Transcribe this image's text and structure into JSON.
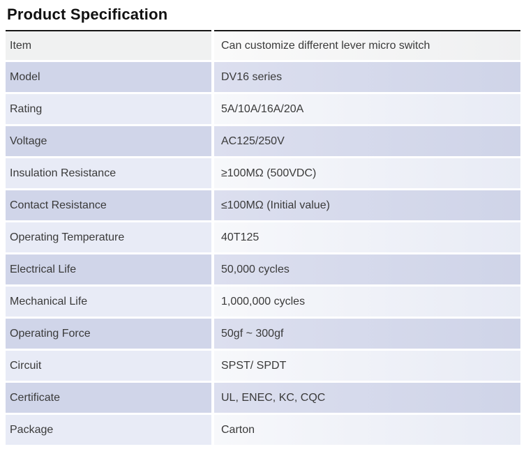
{
  "page": {
    "title": "Product Specification"
  },
  "colors": {
    "row_first_bg": "#f0f1f1",
    "row_dark_bg": "#d0d5e9",
    "row_light_bg": "#e8ebf6",
    "table_top_rule": "#161616",
    "text": "#3a3a3a"
  },
  "table": {
    "rows": [
      {
        "label": "Item",
        "value": "Can customize different lever micro switch"
      },
      {
        "label": "Model",
        "value": "DV16 series"
      },
      {
        "label": "Rating",
        "value": "5A/10A/16A/20A"
      },
      {
        "label": "Voltage",
        "value": "AC125/250V"
      },
      {
        "label": "Insulation Resistance",
        "value": "≥100MΩ (500VDC)"
      },
      {
        "label": "Contact Resistance",
        "value": "≤100MΩ (Initial value)"
      },
      {
        "label": "Operating Temperature",
        "value": "40T125"
      },
      {
        "label": "Electrical Life",
        "value": "50,000 cycles"
      },
      {
        "label": "Mechanical Life",
        "value": "1,000,000 cycles"
      },
      {
        "label": "Operating Force",
        "value": "50gf ~ 300gf"
      },
      {
        "label": "Circuit",
        "value": "SPST/ SPDT"
      },
      {
        "label": "Certificate",
        "value": "UL, ENEC, KC, CQC"
      },
      {
        "label": "Package",
        "value": "Carton"
      }
    ]
  }
}
